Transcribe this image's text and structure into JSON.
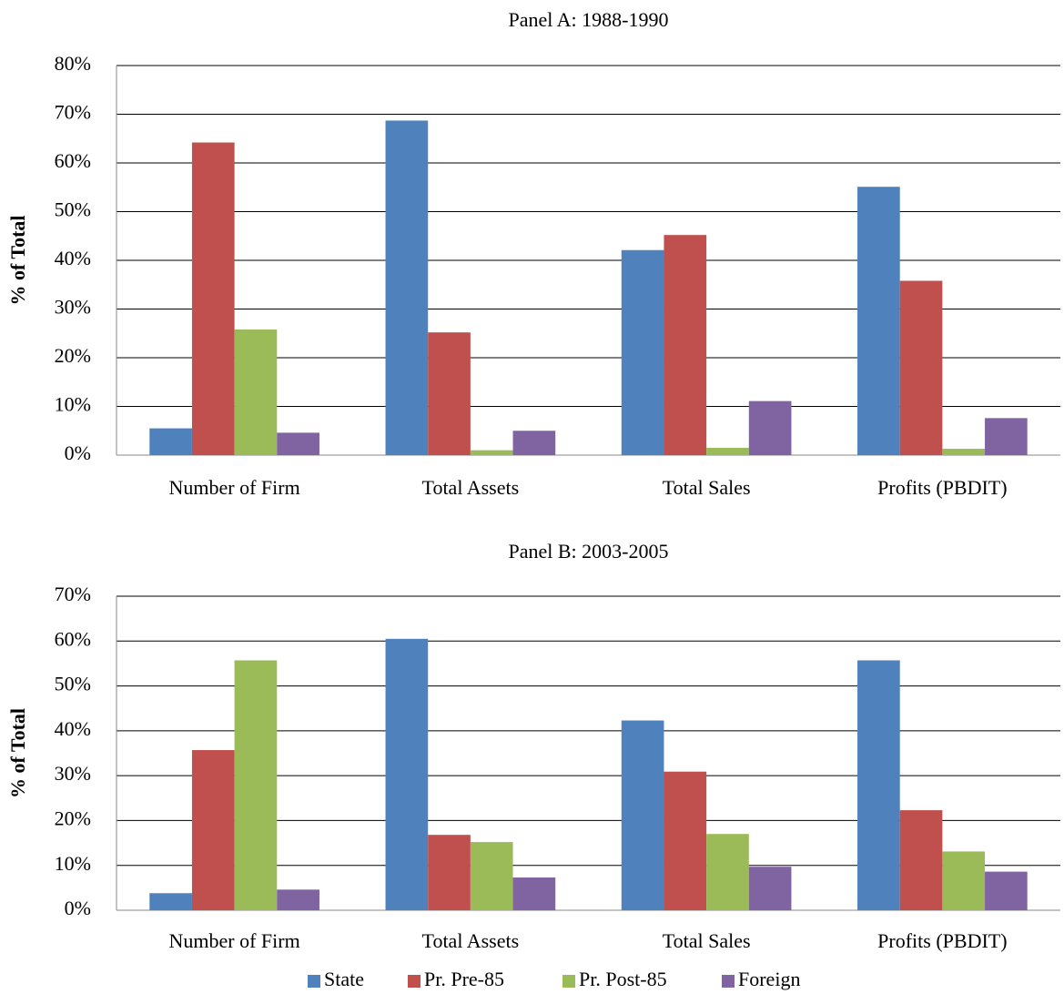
{
  "chart_data": [
    {
      "type": "bar",
      "title": "Panel A: 1988-1990",
      "y_label": "% of Total",
      "categories": [
        "Number of Firm",
        "Total Assets",
        "Total Sales",
        "Profits (PBDIT)"
      ],
      "series": [
        {
          "color": "#4f81bd",
          "values": [
            5.5,
            68.7,
            42.1,
            55.1
          ]
        },
        {
          "color": "#c0504d",
          "values": [
            64.2,
            25.2,
            45.2,
            35.8
          ]
        },
        {
          "color": "#9bbb59",
          "values": [
            25.8,
            1.0,
            1.5,
            1.3
          ]
        },
        {
          "color": "#8064a2",
          "values": [
            4.6,
            5.0,
            11.1,
            7.6
          ]
        }
      ],
      "ylim": [
        0,
        80
      ],
      "yticks": [
        {
          "value": 0,
          "label": "0%"
        },
        {
          "value": 10,
          "label": "10%"
        },
        {
          "value": 20,
          "label": "20%"
        },
        {
          "value": 30,
          "label": "30%"
        },
        {
          "value": 40,
          "label": "40%"
        },
        {
          "value": 50,
          "label": "50%"
        },
        {
          "value": 60,
          "label": "60%"
        },
        {
          "value": 70,
          "label": "70%"
        },
        {
          "value": 80,
          "label": "80%"
        }
      ],
      "grid": true
    },
    {
      "type": "bar",
      "title": "Panel B: 2003-2005",
      "y_label": "% of Total",
      "categories": [
        "Number of Firm",
        "Total Assets",
        "Total Sales",
        "Profits (PBDIT)"
      ],
      "series": [
        {
          "name": "State",
          "color": "#4f81bd",
          "values": [
            3.8,
            60.5,
            42.3,
            55.7
          ]
        },
        {
          "name": "Pr. Pre-85",
          "color": "#c0504d",
          "values": [
            35.7,
            16.8,
            30.9,
            22.3
          ]
        },
        {
          "name": "Pr. Post-85",
          "color": "#9bbb59",
          "values": [
            55.7,
            15.2,
            17.0,
            13.1
          ]
        },
        {
          "name": "Foreign",
          "color": "#8064a2",
          "values": [
            4.6,
            7.3,
            9.7,
            8.6
          ]
        }
      ],
      "ylim": [
        0,
        70
      ],
      "yticks": [
        {
          "value": 0,
          "label": "0%"
        },
        {
          "value": 10,
          "label": "10%"
        },
        {
          "value": 20,
          "label": "20%"
        },
        {
          "value": 30,
          "label": "30%"
        },
        {
          "value": 40,
          "label": "40%"
        },
        {
          "value": 50,
          "label": "50%"
        },
        {
          "value": 60,
          "label": "60%"
        },
        {
          "value": 70,
          "label": "70%"
        }
      ],
      "grid": true,
      "legend": "bottom"
    }
  ]
}
